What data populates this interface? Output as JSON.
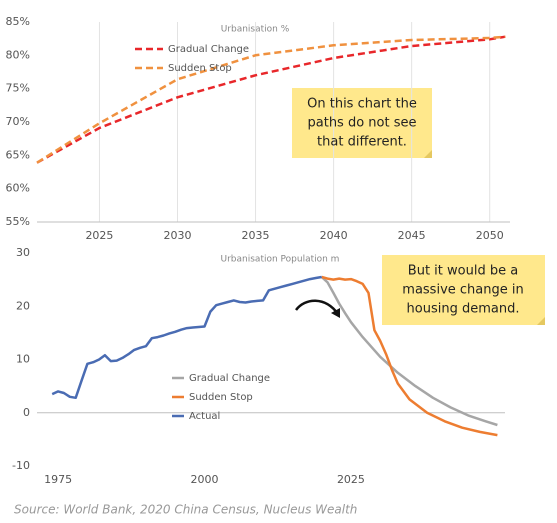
{
  "chart_data": [
    {
      "type": "line",
      "title": "Urbanisation %",
      "x": [
        2021,
        2025,
        2030,
        2035,
        2040,
        2045,
        2050,
        2051
      ],
      "series": [
        {
          "name": "Gradual Change",
          "color": "#e8272a",
          "style": "dashed",
          "values": [
            63.9,
            69.1,
            73.7,
            77,
            79.6,
            81.4,
            82.4,
            82.8
          ]
        },
        {
          "name": "Sudden Stop",
          "color": "#f0913f",
          "style": "dashed",
          "values": [
            63.9,
            69.8,
            76.4,
            80,
            81.5,
            82.3,
            82.6,
            82.8
          ]
        }
      ],
      "xlim": [
        2021,
        2051.3
      ],
      "xticks": [
        2025,
        2030,
        2035,
        2040,
        2045,
        2050
      ],
      "ylim": [
        55,
        85
      ],
      "yticks": [
        {
          "value": 55,
          "label": "55%"
        },
        {
          "value": 60,
          "label": "60%"
        },
        {
          "value": 65,
          "label": "65%"
        },
        {
          "value": 70,
          "label": "70%"
        },
        {
          "value": 75,
          "label": "75%"
        },
        {
          "value": 80,
          "label": "80%"
        },
        {
          "value": 85,
          "label": "85%"
        }
      ],
      "grid": "x",
      "legend": "upper left",
      "annotation": [
        "On this chart the",
        "paths do not see",
        "that different."
      ]
    },
    {
      "type": "line",
      "title": "Urbanisation Population m",
      "series": [
        {
          "name": "Gradual Change",
          "color": "#a6a6a6",
          "style": "solid",
          "x": [
            2020,
            2021,
            2022,
            2023,
            2024,
            2025,
            2027,
            2030,
            2033,
            2036,
            2039,
            2042,
            2045,
            2048,
            2050
          ],
          "values": [
            25.5,
            24.5,
            22.5,
            20.5,
            18.7,
            17,
            14.2,
            10.5,
            7.5,
            5,
            2.8,
            1,
            -0.5,
            -1.6,
            -2.3
          ]
        },
        {
          "name": "Sudden Stop",
          "color": "#ed7d31",
          "style": "solid",
          "x": [
            2020,
            2021,
            2022,
            2023,
            2024,
            2025,
            2026,
            2027,
            2028,
            2029,
            2030,
            2031,
            2032,
            2033,
            2035,
            2038,
            2041,
            2044,
            2047,
            2050
          ],
          "values": [
            25.5,
            25.2,
            25,
            25.2,
            25,
            25.1,
            24.7,
            24.2,
            22.5,
            15.5,
            13.5,
            11,
            8,
            5.5,
            2.5,
            0,
            -1.6,
            -2.8,
            -3.6,
            -4.2
          ]
        },
        {
          "name": "Actual",
          "color": "#4a6cb3",
          "style": "solid",
          "x": [
            1974,
            1975,
            1976,
            1977,
            1978,
            1979,
            1980,
            1981,
            1982,
            1983,
            1984,
            1985,
            1986,
            1987,
            1988,
            1989,
            1990,
            1991,
            1992,
            1993,
            1994,
            1995,
            1996,
            1997,
            1998,
            1999,
            2000,
            2001,
            2002,
            2003,
            2004,
            2005,
            2006,
            2007,
            2008,
            2009,
            2010,
            2011,
            2012,
            2013,
            2014,
            2015,
            2016,
            2017,
            2018,
            2019,
            2020
          ],
          "values": [
            3.5,
            4,
            3.7,
            3,
            2.8,
            6,
            9.2,
            9.5,
            10,
            10.8,
            9.7,
            9.8,
            10.3,
            11,
            11.8,
            12.2,
            12.5,
            14,
            14.2,
            14.5,
            14.9,
            15.2,
            15.6,
            15.9,
            16,
            16.1,
            16.2,
            19,
            20.2,
            20.5,
            20.8,
            21.1,
            20.8,
            20.7,
            20.9,
            21,
            21.1,
            23,
            23.3,
            23.6,
            23.9,
            24.2,
            24.5,
            24.8,
            25.1,
            25.3,
            25.5
          ]
        }
      ],
      "xlim": [
        1971.4,
        2051.3
      ],
      "xticks": [
        1975,
        2000,
        2025
      ],
      "ylim": [
        -10,
        30
      ],
      "yticks": [
        -10,
        0,
        10,
        20,
        30
      ],
      "grid": false,
      "legend": "center left",
      "annotation": [
        "But it would be a",
        "massive change in",
        "housing demand."
      ]
    }
  ],
  "source": "Source: World Bank, 2020 China Census, Nucleus Wealth"
}
